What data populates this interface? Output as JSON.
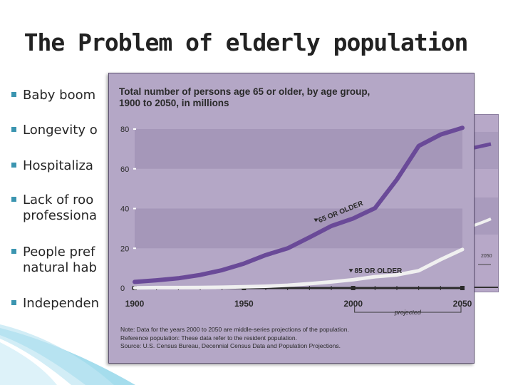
{
  "slide": {
    "title": "The Problem of elderly population",
    "bullets": [
      "Baby boom",
      "Longevity o",
      "Hospitaliza",
      "Lack of roo",
      "professiona",
      "People pref",
      "natural hab",
      "Independen"
    ]
  },
  "colors": {
    "bullet_mark": "#3b95b0",
    "card_background": "#b4a7c6",
    "series_65": "#6a4a98",
    "series_85": "#f0f0f0"
  },
  "chart_data": {
    "type": "line",
    "title": "Total number of persons age 65 or older, by age group, 1900 to 2050, in millions",
    "title_lines": [
      "Total number of persons age 65 or older, by age group,",
      "1900 to 2050, in millions"
    ],
    "xlim": [
      1900,
      2050
    ],
    "ylim": [
      0,
      80
    ],
    "x_ticks": [
      "1900",
      "1950",
      "2000",
      "2050"
    ],
    "y_ticks": [
      "0",
      "20",
      "40",
      "60",
      "80"
    ],
    "projected_label": "projected",
    "series": [
      {
        "name": "65 OR OLDER",
        "x": [
          1900,
          1910,
          1920,
          1930,
          1940,
          1950,
          1960,
          1970,
          1980,
          1990,
          2000,
          2010,
          2020,
          2030,
          2040,
          2050
        ],
        "values": [
          3.1,
          3.9,
          4.9,
          6.6,
          9.0,
          12.3,
          16.6,
          20.0,
          25.5,
          31.2,
          35.0,
          40.2,
          54.6,
          71.5,
          77.2,
          80.6
        ]
      },
      {
        "name": "85 OR OLDER",
        "x": [
          1900,
          1910,
          1920,
          1930,
          1940,
          1950,
          1960,
          1970,
          1980,
          1990,
          2000,
          2010,
          2020,
          2030,
          2040,
          2050
        ],
        "values": [
          0.1,
          0.2,
          0.2,
          0.3,
          0.4,
          0.6,
          0.9,
          1.4,
          2.2,
          3.1,
          4.2,
          5.7,
          6.6,
          8.7,
          14.3,
          19.4
        ]
      }
    ],
    "notes": [
      "Note: Data for the years 2000 to 2050 are middle-series projections of the population.",
      "Reference population: These data refer to the resident population.",
      "Source: U.S. Census Bureau, Decennial Census Data and Population Projections."
    ],
    "bg_chart_label": "2050",
    "grid": false,
    "legend": "inline-labels"
  }
}
